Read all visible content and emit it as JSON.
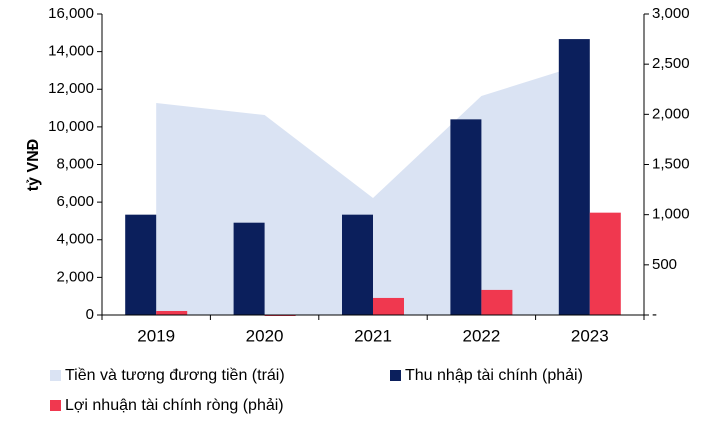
{
  "chart_data": {
    "type": "combo",
    "y_label": "tỷ VNĐ",
    "categories": [
      "2019",
      "2020",
      "2021",
      "2022",
      "2023"
    ],
    "series": [
      {
        "name": "Tiền và tương đương tiền (trái)",
        "type": "area",
        "color": "#dae3f3",
        "axis": "y",
        "values": [
          11270,
          10630,
          6220,
          11640,
          13450
        ]
      },
      {
        "name": "Thu nhập tài chính (phải)",
        "type": "bar",
        "color": "#0b1f5c",
        "axis": "y2",
        "values": [
          1000,
          920,
          1000,
          1950,
          2750
        ]
      },
      {
        "name": "Lợi nhuận tài chính ròng (phải)",
        "type": "bar",
        "color": "#f0384f",
        "axis": "y2",
        "values": [
          40,
          -10,
          170,
          250,
          1020
        ]
      }
    ],
    "ylim": [
      0,
      16000
    ],
    "yticks": [
      0,
      {
        "value": 2000,
        "label": "2,000"
      },
      {
        "value": 4000,
        "label": "4,000"
      },
      {
        "value": 6000,
        "label": "6,000"
      },
      {
        "value": 8000,
        "label": "8,000"
      },
      {
        "value": 10000,
        "label": "10,000"
      },
      {
        "value": 12000,
        "label": "12,000"
      },
      {
        "value": 14000,
        "label": "14,000"
      },
      {
        "value": 16000,
        "label": "16,000"
      }
    ],
    "y2lim": [
      0,
      3000
    ],
    "y2ticks": [
      {
        "value": 0,
        "label": "-"
      },
      500,
      {
        "value": 1000,
        "label": "1,000"
      },
      {
        "value": 1500,
        "label": "1,500"
      },
      {
        "value": 2000,
        "label": "2,000"
      },
      {
        "value": 2500,
        "label": "2,500"
      },
      {
        "value": 3000,
        "label": "3,000"
      }
    ],
    "grid": false
  }
}
